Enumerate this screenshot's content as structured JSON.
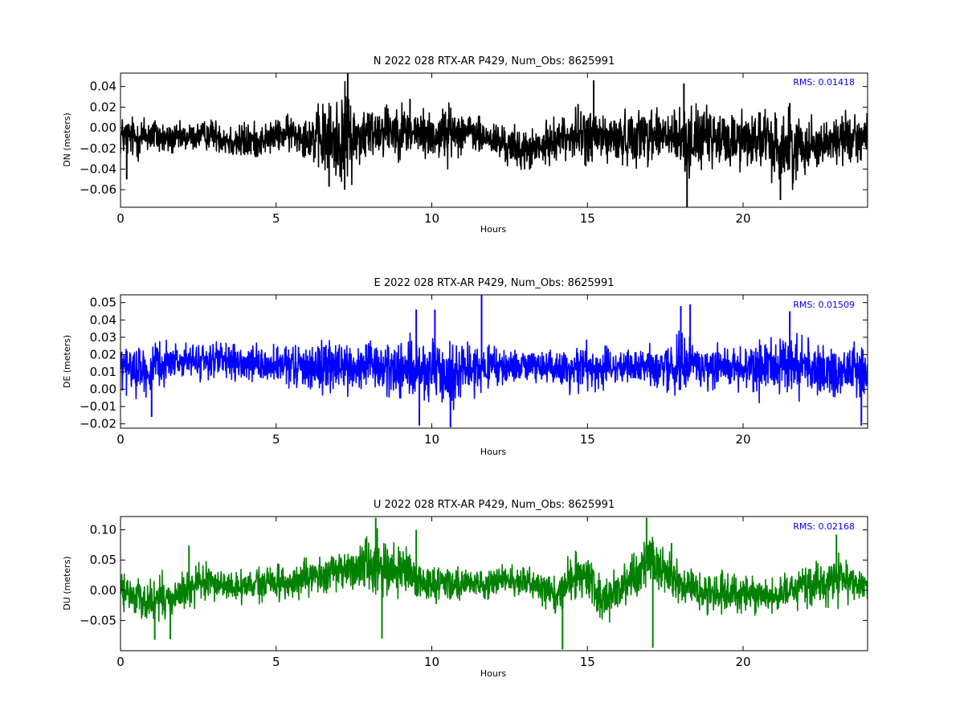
{
  "chart_data": [
    {
      "type": "line",
      "title": "N 2022 028 RTX-AR  P429, Num_Obs: 8625991",
      "xlabel": "Hours",
      "ylabel": "DN (meters)",
      "xlim": [
        0,
        24
      ],
      "ylim": [
        -0.077,
        0.053
      ],
      "xticks": [
        0,
        5,
        10,
        15,
        20
      ],
      "yticks": [
        0.04,
        0.02,
        0.0,
        -0.02,
        -0.04,
        -0.06
      ],
      "ytick_labels": [
        "0.04",
        "0.02",
        "0.00",
        "−0.02",
        "−0.04",
        "−0.06"
      ],
      "xtick_labels": [
        "0",
        "5",
        "10",
        "15",
        "20"
      ],
      "annotation": "RMS:  0.01418",
      "grid": false,
      "series": [
        {
          "color": "#000000",
          "x": [
            0,
            0.5,
            1,
            1.5,
            2,
            2.5,
            3,
            3.5,
            4,
            4.5,
            5,
            5.5,
            6,
            6.5,
            7,
            7.3,
            7.5,
            8,
            8.5,
            9,
            9.5,
            10,
            10.5,
            11,
            11.5,
            12,
            12.5,
            13,
            13.5,
            14,
            14.5,
            15,
            15.5,
            16,
            16.5,
            17,
            17.5,
            18,
            18.2,
            18.5,
            19,
            19.5,
            20,
            20.5,
            21,
            21.5,
            22,
            22.5,
            23,
            23.5,
            24
          ],
          "center": [
            -0.008,
            -0.01,
            -0.006,
            -0.012,
            -0.01,
            -0.008,
            -0.006,
            -0.012,
            -0.014,
            -0.012,
            -0.008,
            -0.005,
            -0.008,
            -0.012,
            -0.012,
            -0.005,
            -0.01,
            -0.005,
            0.0,
            -0.002,
            -0.005,
            -0.008,
            -0.005,
            -0.002,
            -0.008,
            -0.012,
            -0.018,
            -0.022,
            -0.02,
            -0.01,
            -0.008,
            -0.008,
            -0.01,
            -0.012,
            -0.008,
            -0.005,
            -0.008,
            -0.012,
            -0.015,
            -0.008,
            -0.012,
            -0.012,
            -0.01,
            -0.01,
            -0.018,
            -0.02,
            -0.015,
            -0.015,
            -0.012,
            -0.008,
            -0.01
          ],
          "amplitude": [
            0.02,
            0.022,
            0.02,
            0.016,
            0.014,
            0.014,
            0.015,
            0.018,
            0.02,
            0.016,
            0.016,
            0.018,
            0.02,
            0.036,
            0.044,
            0.046,
            0.036,
            0.026,
            0.028,
            0.026,
            0.024,
            0.024,
            0.028,
            0.02,
            0.018,
            0.018,
            0.02,
            0.02,
            0.02,
            0.02,
            0.022,
            0.03,
            0.026,
            0.024,
            0.026,
            0.03,
            0.028,
            0.03,
            0.034,
            0.03,
            0.028,
            0.028,
            0.03,
            0.028,
            0.034,
            0.036,
            0.028,
            0.022,
            0.024,
            0.026,
            0.022
          ],
          "spikes": [
            [
              7.3,
              0.053
            ],
            [
              7.2,
              -0.06
            ],
            [
              18.2,
              -0.077
            ],
            [
              18.1,
              0.043
            ],
            [
              15.2,
              0.046
            ],
            [
              14.7,
              0.023
            ],
            [
              9.3,
              0.028
            ],
            [
              21.5,
              0.024
            ],
            [
              6.7,
              -0.057
            ],
            [
              21.2,
              -0.07
            ],
            [
              0.2,
              -0.05
            ]
          ]
        }
      ]
    },
    {
      "type": "line",
      "title": "E 2022 028 RTX-AR  P429, Num_Obs: 8625991",
      "xlabel": "Hours",
      "ylabel": "DE (meters)",
      "xlim": [
        0,
        24
      ],
      "ylim": [
        -0.0225,
        0.0545
      ],
      "xticks": [
        0,
        5,
        10,
        15,
        20
      ],
      "yticks": [
        0.05,
        0.04,
        0.03,
        0.02,
        0.01,
        0.0,
        -0.01,
        -0.02
      ],
      "ytick_labels": [
        "0.05",
        "0.04",
        "0.03",
        "0.02",
        "0.01",
        "0.00",
        "−0.01",
        "−0.02"
      ],
      "xtick_labels": [
        "0",
        "5",
        "10",
        "15",
        "20"
      ],
      "annotation": "RMS:  0.01509",
      "grid": false,
      "series": [
        {
          "color": "#0000ff",
          "x": [
            0,
            0.5,
            1,
            1.5,
            2,
            2.5,
            3,
            3.5,
            4,
            4.5,
            5,
            5.5,
            6,
            6.5,
            7,
            7.5,
            8,
            8.5,
            9,
            9.5,
            10,
            10.5,
            11,
            11.5,
            12,
            12.5,
            13,
            13.5,
            14,
            14.5,
            15,
            15.5,
            16,
            16.5,
            17,
            17.5,
            18,
            18.5,
            19,
            19.5,
            20,
            20.5,
            21,
            21.5,
            22,
            22.5,
            23,
            23.5,
            24
          ],
          "center": [
            0.012,
            0.012,
            0.01,
            0.016,
            0.016,
            0.016,
            0.017,
            0.015,
            0.014,
            0.014,
            0.013,
            0.013,
            0.013,
            0.013,
            0.013,
            0.012,
            0.013,
            0.012,
            0.012,
            0.01,
            0.008,
            0.008,
            0.012,
            0.012,
            0.012,
            0.013,
            0.014,
            0.013,
            0.012,
            0.012,
            0.014,
            0.012,
            0.012,
            0.013,
            0.013,
            0.013,
            0.014,
            0.014,
            0.013,
            0.013,
            0.013,
            0.012,
            0.012,
            0.014,
            0.014,
            0.01,
            0.01,
            0.01,
            0.011
          ],
          "amplitude": [
            0.016,
            0.014,
            0.014,
            0.01,
            0.01,
            0.01,
            0.011,
            0.01,
            0.01,
            0.01,
            0.011,
            0.012,
            0.014,
            0.016,
            0.016,
            0.014,
            0.014,
            0.016,
            0.016,
            0.018,
            0.02,
            0.018,
            0.014,
            0.012,
            0.012,
            0.01,
            0.01,
            0.01,
            0.01,
            0.012,
            0.014,
            0.012,
            0.01,
            0.01,
            0.011,
            0.013,
            0.018,
            0.016,
            0.012,
            0.012,
            0.013,
            0.016,
            0.018,
            0.018,
            0.016,
            0.014,
            0.016,
            0.016,
            0.016
          ],
          "spikes": [
            [
              11.6,
              0.0545
            ],
            [
              9.5,
              0.046
            ],
            [
              10.1,
              0.046
            ],
            [
              18.0,
              0.048
            ],
            [
              18.3,
              0.049
            ],
            [
              21.5,
              0.045
            ],
            [
              10.6,
              -0.022
            ],
            [
              9.6,
              -0.021
            ],
            [
              23.8,
              -0.021
            ],
            [
              1.0,
              -0.016
            ]
          ]
        }
      ]
    },
    {
      "type": "line",
      "title": "U 2022 028 RTX-AR  P429, Num_Obs: 8625991",
      "xlabel": "Hours",
      "ylabel": "DU (meters)",
      "xlim": [
        0,
        24
      ],
      "ylim": [
        -0.1,
        0.122
      ],
      "xticks": [
        0,
        5,
        10,
        15,
        20
      ],
      "yticks": [
        0.1,
        0.05,
        0.0,
        -0.05
      ],
      "ytick_labels": [
        "0.10",
        "0.05",
        "0.00",
        "−0.05"
      ],
      "xtick_labels": [
        "0",
        "5",
        "10",
        "15",
        "20"
      ],
      "annotation": "RMS:  0.02168",
      "grid": false,
      "series": [
        {
          "color": "#008000",
          "x": [
            0,
            0.5,
            1,
            1.5,
            2,
            2.5,
            3,
            3.5,
            4,
            4.5,
            5,
            5.5,
            6,
            6.5,
            7,
            7.5,
            8,
            8.5,
            9,
            9.5,
            10,
            10.5,
            11,
            11.5,
            12,
            12.5,
            13,
            13.5,
            14,
            14.5,
            15,
            15.5,
            16,
            16.5,
            17,
            17.5,
            18,
            18.5,
            19,
            19.5,
            20,
            20.5,
            21,
            21.5,
            22,
            22.5,
            23,
            23.5,
            24
          ],
          "center": [
            0.0,
            -0.01,
            -0.02,
            -0.015,
            -0.005,
            0.01,
            0.015,
            0.005,
            0.005,
            0.01,
            0.015,
            0.01,
            0.02,
            0.025,
            0.03,
            0.04,
            0.045,
            0.04,
            0.03,
            0.015,
            0.01,
            0.015,
            0.012,
            0.01,
            0.015,
            0.015,
            0.012,
            0.008,
            -0.008,
            0.02,
            0.025,
            -0.02,
            0.0,
            0.02,
            0.05,
            0.035,
            0.01,
            0.0,
            -0.005,
            -0.005,
            -0.005,
            -0.01,
            -0.01,
            0.0,
            0.005,
            0.01,
            0.02,
            0.015,
            0.005
          ],
          "amplitude": [
            0.028,
            0.03,
            0.04,
            0.042,
            0.035,
            0.03,
            0.03,
            0.025,
            0.025,
            0.028,
            0.03,
            0.03,
            0.025,
            0.03,
            0.035,
            0.04,
            0.05,
            0.045,
            0.04,
            0.035,
            0.032,
            0.03,
            0.025,
            0.025,
            0.025,
            0.025,
            0.025,
            0.025,
            0.03,
            0.04,
            0.04,
            0.04,
            0.03,
            0.04,
            0.055,
            0.045,
            0.035,
            0.035,
            0.035,
            0.035,
            0.03,
            0.028,
            0.025,
            0.03,
            0.035,
            0.035,
            0.04,
            0.035,
            0.03
          ],
          "spikes": [
            [
              8.2,
              0.12
            ],
            [
              16.9,
              0.12
            ],
            [
              9.5,
              0.1
            ],
            [
              14.2,
              -0.098
            ],
            [
              17.1,
              -0.095
            ],
            [
              1.1,
              -0.082
            ],
            [
              1.6,
              -0.081
            ],
            [
              8.4,
              -0.08
            ],
            [
              23.0,
              0.092
            ],
            [
              2.2,
              0.074
            ],
            [
              17.7,
              0.078
            ]
          ]
        }
      ]
    }
  ]
}
